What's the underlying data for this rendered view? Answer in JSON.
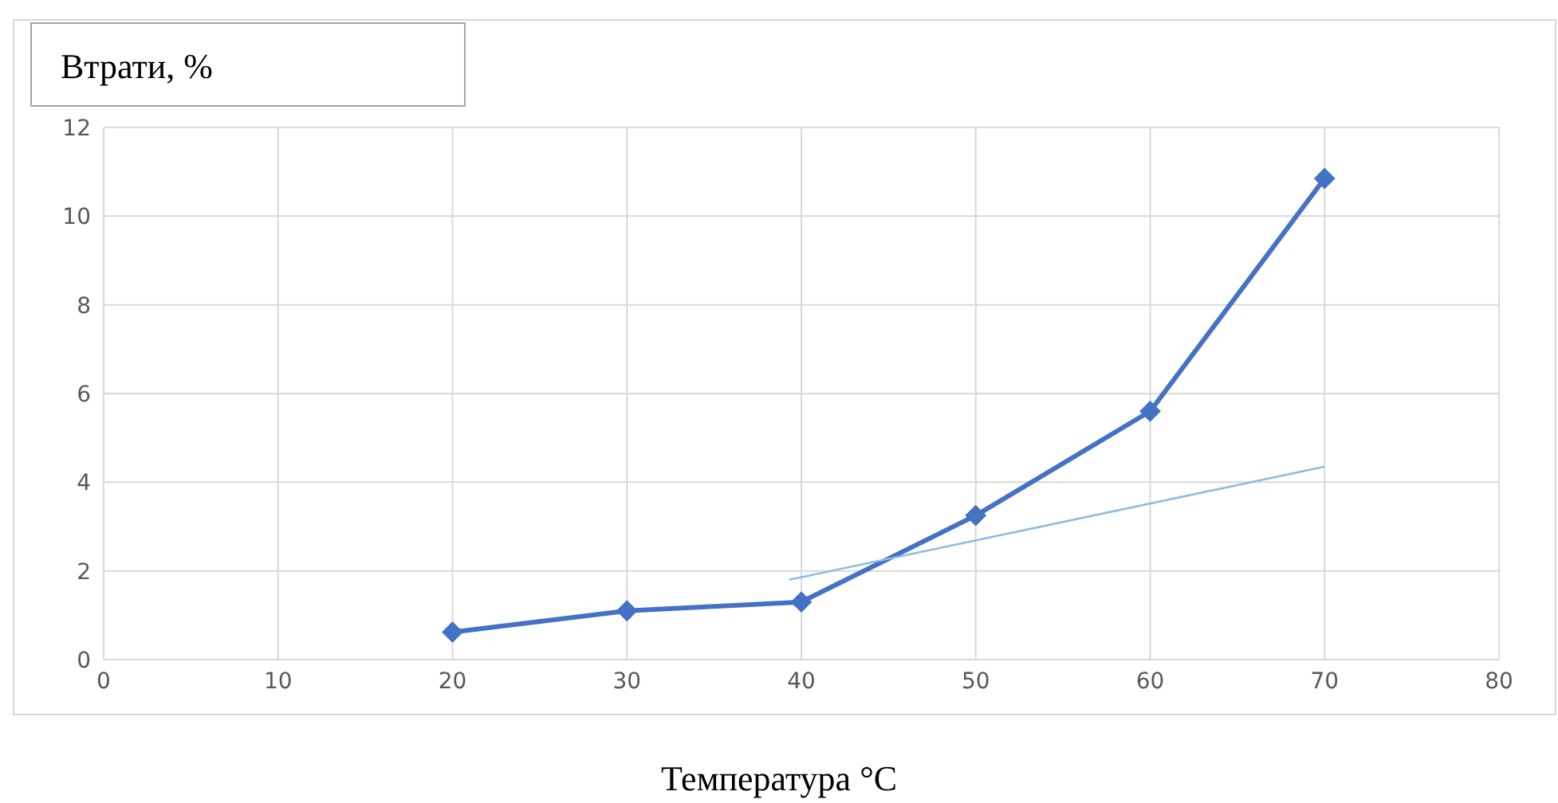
{
  "chart_data": {
    "type": "line",
    "ylabel": "Втрати, %",
    "xlabel": "Температура °C",
    "xlim": [
      0,
      80
    ],
    "xticks": [
      0,
      10,
      20,
      30,
      40,
      50,
      60,
      70,
      80
    ],
    "ylim": [
      0,
      12
    ],
    "yticks": [
      0,
      2,
      4,
      6,
      8,
      10,
      12
    ],
    "grid": true,
    "marker": "diamond",
    "line_style": "solid",
    "series": [
      {
        "color": "#4472c4",
        "x": [
          20,
          30,
          40,
          50,
          60,
          70
        ],
        "values": [
          0.62,
          1.1,
          1.3,
          3.25,
          5.6,
          10.85
        ]
      },
      {
        "type": "line",
        "color": "#8fbbe6",
        "marker": "none",
        "x": [
          39.3,
          70
        ],
        "values": [
          1.8,
          4.35
        ]
      }
    ]
  }
}
